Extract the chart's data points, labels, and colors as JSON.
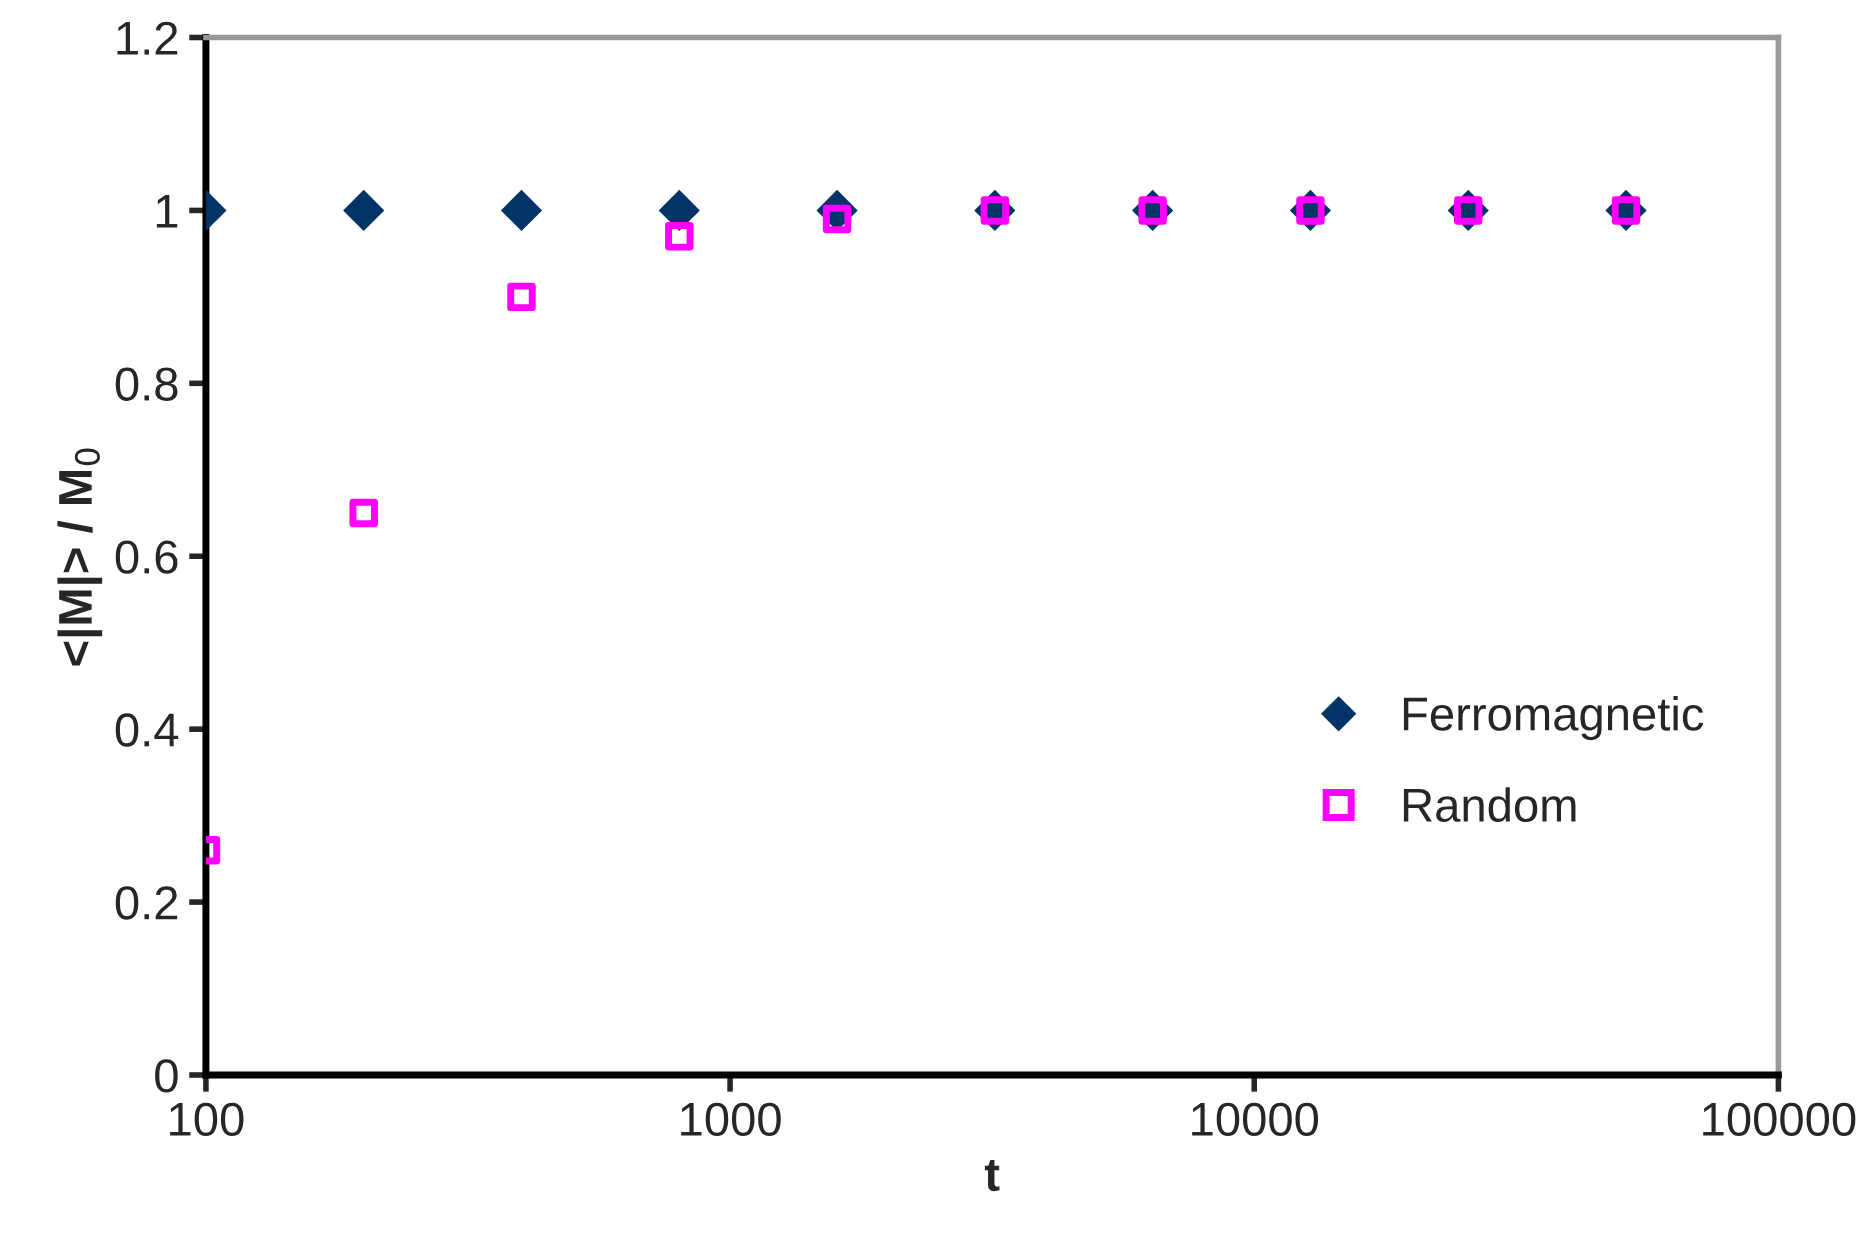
{
  "chart_data": {
    "type": "scatter",
    "xlabel": "t",
    "ylabel": "<|M|> / M$_{0}$",
    "x": [
      100,
      200,
      400,
      800,
      1600,
      3200,
      6400,
      12800,
      25600,
      51200
    ],
    "series": [
      {
        "name": "Ferromagnetic",
        "color": "#003366",
        "marker": "diamond",
        "values": [
          1.0,
          1.0,
          1.0,
          1.0,
          1.0,
          1.0,
          1.0,
          1.0,
          1.0,
          1.0
        ]
      },
      {
        "name": "Random",
        "color": "#ff00ff",
        "marker": "square",
        "values": [
          0.26,
          0.65,
          0.9,
          0.97,
          0.99,
          1.0,
          1.0,
          1.0,
          1.0,
          1.0
        ]
      }
    ],
    "log": "x",
    "xlim": [
      100,
      100000
    ],
    "xticks": [
      100,
      1000,
      10000,
      100000
    ],
    "ylim": [
      0,
      1.2
    ],
    "yticks": [
      0,
      0.2,
      0.4,
      0.6,
      0.8,
      1,
      1.2
    ],
    "grid": false,
    "legend": "right"
  }
}
